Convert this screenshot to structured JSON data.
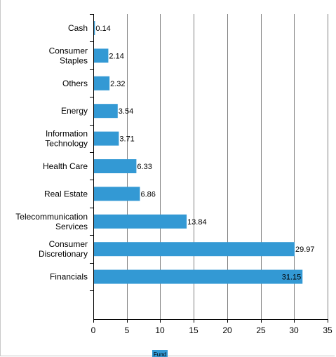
{
  "chart_data": {
    "type": "bar",
    "orientation": "horizontal",
    "categories": [
      "Cash",
      "Consumer Staples",
      "Others",
      "Energy",
      "Information Technology",
      "Health Care",
      "Real Estate",
      "Telecommunication Services",
      "Consumer Discretionary",
      "Financials"
    ],
    "category_lines": [
      [
        "Cash"
      ],
      [
        "Consumer",
        "Staples"
      ],
      [
        "Others"
      ],
      [
        "Energy"
      ],
      [
        "Information",
        "Technology"
      ],
      [
        "Health Care"
      ],
      [
        "Real Estate"
      ],
      [
        "Telecommunication",
        "Services"
      ],
      [
        "Consumer",
        "Discretionary"
      ],
      [
        "Financials"
      ]
    ],
    "series": [
      {
        "name": "Fund",
        "color": "#3399d4",
        "values": [
          0.14,
          2.14,
          2.32,
          3.54,
          3.71,
          6.33,
          6.86,
          13.84,
          29.97,
          31.15
        ],
        "labels": [
          "0.14",
          "2.14",
          "2.32",
          "3.54",
          "3.71",
          "6.33",
          "6.86",
          "13.84",
          "29.97",
          "31.15"
        ]
      }
    ],
    "xlim": [
      0,
      35
    ],
    "xticks": [
      0,
      5,
      10,
      15,
      20,
      25,
      30,
      35
    ],
    "xtick_labels": [
      "0",
      "5",
      "10",
      "15",
      "20",
      "25",
      "30",
      "35"
    ],
    "grid": true,
    "legend_position": "bottom-center",
    "title": "",
    "xlabel": "",
    "ylabel": ""
  }
}
